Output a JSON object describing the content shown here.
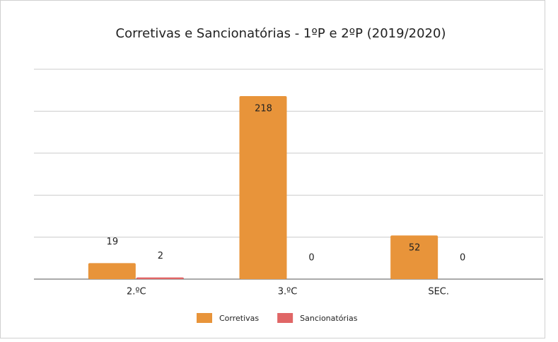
{
  "chart_data": {
    "type": "bar",
    "title": "Corretivas e Sancionatórias - 1ºP e 2ºP  (2019/2020)",
    "categories": [
      "2.ºC",
      "3.ºC",
      "SEC."
    ],
    "series": [
      {
        "name": "Corretivas",
        "color": "#e8943a",
        "values": [
          19,
          218,
          52
        ]
      },
      {
        "name": "Sancionatórias",
        "color": "#e06666",
        "values": [
          2,
          0,
          0
        ]
      }
    ],
    "ylim": [
      0,
      250
    ],
    "yticks": [
      0,
      50,
      100,
      150,
      200,
      250
    ],
    "grid": true,
    "legend": "bottom"
  }
}
